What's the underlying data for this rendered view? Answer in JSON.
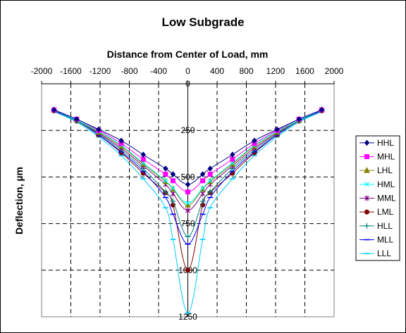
{
  "chart_data": {
    "type": "line",
    "title": "Low Subgrade",
    "xlabel": "Distance from Center of Load, mm",
    "ylabel": "Deflection, µm",
    "xlim": [
      -2000,
      2000
    ],
    "ylim": [
      0,
      1250
    ],
    "y_reversed": true,
    "x_axis_position": "top",
    "x_ticks": [
      -2000,
      -1600,
      -1200,
      -800,
      -400,
      0,
      400,
      800,
      1200,
      1600,
      2000
    ],
    "x_tick_labels": [
      "-2000",
      "-1600",
      "-1200",
      "-800",
      "-400",
      "0",
      "400",
      "800",
      "1200",
      "1600",
      "2000"
    ],
    "y_ticks": [
      0,
      250,
      500,
      750,
      1000,
      1250
    ],
    "y_tick_labels": [
      "0",
      "250",
      "500",
      "750",
      "1000",
      "1250"
    ],
    "grid": "dashed vertical and horizontal",
    "legend_position": "right",
    "x": [
      -1830,
      -1520,
      -1220,
      -910,
      -610,
      -305,
      -203,
      0,
      203,
      305,
      610,
      910,
      1220,
      1520,
      1830
    ],
    "series": [
      {
        "name": "HHL",
        "color": "#000080",
        "marker": "diamond",
        "values": [
          140,
          190,
          245,
          305,
          380,
          455,
          485,
          540,
          485,
          455,
          380,
          305,
          245,
          190,
          140
        ]
      },
      {
        "name": "MHL",
        "color": "#ff00ff",
        "marker": "square",
        "values": [
          140,
          190,
          250,
          320,
          405,
          485,
          520,
          580,
          520,
          485,
          405,
          320,
          250,
          190,
          140
        ]
      },
      {
        "name": "LHL",
        "color": "#808000",
        "marker": "triangle",
        "values": [
          140,
          195,
          260,
          335,
          430,
          525,
          565,
          650,
          565,
          525,
          430,
          335,
          260,
          195,
          140
        ]
      },
      {
        "name": "HML",
        "color": "#00ffff",
        "marker": "x",
        "values": [
          140,
          195,
          255,
          330,
          425,
          520,
          560,
          640,
          560,
          520,
          425,
          330,
          255,
          195,
          140
        ]
      },
      {
        "name": "MML",
        "color": "#800080",
        "marker": "asterisk",
        "values": [
          140,
          195,
          265,
          345,
          440,
          540,
          590,
          680,
          590,
          540,
          440,
          345,
          265,
          195,
          140
        ]
      },
      {
        "name": "LML",
        "color": "#800000",
        "marker": "circle",
        "values": [
          145,
          200,
          275,
          370,
          480,
          585,
          650,
          1000,
          650,
          585,
          480,
          370,
          275,
          200,
          145
        ]
      },
      {
        "name": "HLL",
        "color": "#008080",
        "marker": "plus",
        "values": [
          140,
          200,
          270,
          355,
          455,
          580,
          630,
          820,
          630,
          580,
          455,
          355,
          270,
          200,
          140
        ]
      },
      {
        "name": "MLL",
        "color": "#0000ff",
        "marker": "dash",
        "values": [
          145,
          200,
          275,
          365,
          470,
          610,
          700,
          860,
          700,
          610,
          470,
          365,
          275,
          200,
          145
        ]
      },
      {
        "name": "LLL",
        "color": "#00ccff",
        "marker": "dash",
        "values": [
          150,
          205,
          285,
          385,
          510,
          665,
          835,
          1230,
          835,
          665,
          510,
          385,
          285,
          205,
          150
        ]
      }
    ]
  }
}
